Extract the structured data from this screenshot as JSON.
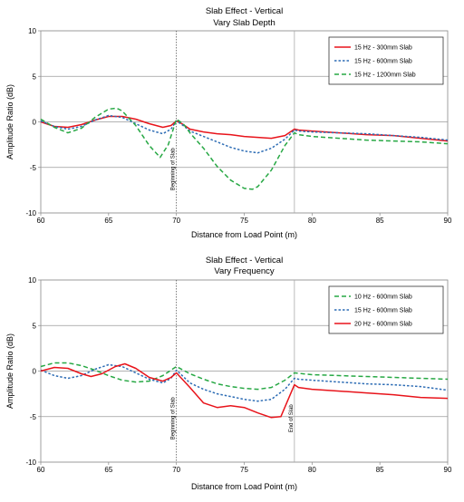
{
  "chart_data": [
    {
      "type": "line",
      "title": "Slab Effect - Vertical",
      "subtitle": "Vary Slab Depth",
      "xlabel": "Distance from Load Point (m)",
      "ylabel": "Amplitude Ratio (dB)",
      "xlim": [
        60,
        90
      ],
      "ylim": [
        -10,
        10
      ],
      "xticks": [
        60,
        65,
        70,
        75,
        80,
        85,
        90
      ],
      "yticks": [
        -10,
        -5,
        0,
        5,
        10
      ],
      "grid": "horizontal",
      "legend_position": "top-right",
      "vlines": [
        70,
        78.7
      ],
      "annotations": [
        {
          "text": "Beginning of Slab",
          "x": 70
        }
      ],
      "series": [
        {
          "name": "15 Hz - 300mm Slab",
          "color": "#e8141b",
          "dash": "solid",
          "points": [
            [
              60,
              0.0
            ],
            [
              61,
              -0.5
            ],
            [
              62,
              -0.6
            ],
            [
              63,
              -0.3
            ],
            [
              64,
              0.2
            ],
            [
              65,
              0.6
            ],
            [
              66,
              0.6
            ],
            [
              67,
              0.3
            ],
            [
              68,
              -0.2
            ],
            [
              69,
              -0.6
            ],
            [
              69.6,
              -0.4
            ],
            [
              70,
              0.1
            ],
            [
              70.4,
              -0.2
            ],
            [
              71,
              -0.8
            ],
            [
              72,
              -1.1
            ],
            [
              73,
              -1.3
            ],
            [
              74,
              -1.4
            ],
            [
              75,
              -1.6
            ],
            [
              76,
              -1.7
            ],
            [
              77,
              -1.8
            ],
            [
              78,
              -1.5
            ],
            [
              78.7,
              -0.8
            ],
            [
              79,
              -0.9
            ],
            [
              80,
              -1.0
            ],
            [
              82,
              -1.2
            ],
            [
              84,
              -1.4
            ],
            [
              86,
              -1.5
            ],
            [
              88,
              -1.8
            ],
            [
              90,
              -2.1
            ]
          ]
        },
        {
          "name": "15 Hz - 600mm Slab",
          "color": "#2e6db5",
          "dash": "short",
          "points": [
            [
              60,
              0.1
            ],
            [
              61,
              -0.5
            ],
            [
              62,
              -0.8
            ],
            [
              63,
              -0.5
            ],
            [
              64,
              0.2
            ],
            [
              65,
              0.7
            ],
            [
              66,
              0.5
            ],
            [
              67,
              -0.2
            ],
            [
              68,
              -0.9
            ],
            [
              69,
              -1.3
            ],
            [
              69.6,
              -0.8
            ],
            [
              70,
              0.1
            ],
            [
              70.5,
              -0.4
            ],
            [
              71,
              -1.0
            ],
            [
              72,
              -1.6
            ],
            [
              73,
              -2.2
            ],
            [
              74,
              -2.8
            ],
            [
              75,
              -3.2
            ],
            [
              76,
              -3.4
            ],
            [
              77,
              -2.9
            ],
            [
              78,
              -1.9
            ],
            [
              78.7,
              -0.9
            ],
            [
              79,
              -1.0
            ],
            [
              80,
              -1.1
            ],
            [
              82,
              -1.2
            ],
            [
              84,
              -1.3
            ],
            [
              86,
              -1.5
            ],
            [
              88,
              -1.7
            ],
            [
              90,
              -2.0
            ]
          ]
        },
        {
          "name": "15 Hz - 1200mm Slab",
          "color": "#27a844",
          "dash": "long",
          "points": [
            [
              60,
              0.3
            ],
            [
              61,
              -0.6
            ],
            [
              62,
              -1.2
            ],
            [
              63,
              -0.7
            ],
            [
              64,
              0.5
            ],
            [
              65,
              1.4
            ],
            [
              65.6,
              1.5
            ],
            [
              66,
              1.2
            ],
            [
              67,
              -0.4
            ],
            [
              68,
              -2.6
            ],
            [
              68.8,
              -3.9
            ],
            [
              69.4,
              -2.5
            ],
            [
              70,
              0.3
            ],
            [
              70.5,
              -0.2
            ],
            [
              71,
              -1.2
            ],
            [
              72,
              -2.9
            ],
            [
              73,
              -4.9
            ],
            [
              74,
              -6.4
            ],
            [
              75,
              -7.3
            ],
            [
              75.6,
              -7.4
            ],
            [
              76,
              -7.1
            ],
            [
              77,
              -5.3
            ],
            [
              78,
              -2.6
            ],
            [
              78.7,
              -1.2
            ],
            [
              79,
              -1.4
            ],
            [
              80,
              -1.6
            ],
            [
              82,
              -1.8
            ],
            [
              84,
              -2.0
            ],
            [
              86,
              -2.1
            ],
            [
              88,
              -2.2
            ],
            [
              90,
              -2.4
            ]
          ]
        }
      ]
    },
    {
      "type": "line",
      "title": "Slab Effect - Vertical",
      "subtitle": "Vary Frequency",
      "xlabel": "Distance from Load Point (m)",
      "ylabel": "Amplitude Ratio (dB)",
      "xlim": [
        60,
        90
      ],
      "ylim": [
        -10,
        10
      ],
      "xticks": [
        60,
        65,
        70,
        75,
        80,
        85,
        90
      ],
      "yticks": [
        -10,
        -5,
        0,
        5,
        10
      ],
      "grid": "horizontal",
      "legend_position": "top-right",
      "vlines": [
        70,
        78.7
      ],
      "annotations": [
        {
          "text": "Beginning of Slab",
          "x": 70
        },
        {
          "text": "End of Slab",
          "x": 78.7
        }
      ],
      "series": [
        {
          "name": "10 Hz - 600mm Slab",
          "color": "#27a844",
          "dash": "long",
          "points": [
            [
              60,
              0.5
            ],
            [
              61,
              0.9
            ],
            [
              62,
              0.9
            ],
            [
              63,
              0.6
            ],
            [
              64,
              0.1
            ],
            [
              65,
              -0.5
            ],
            [
              66,
              -1.0
            ],
            [
              67,
              -1.2
            ],
            [
              68,
              -1.1
            ],
            [
              69,
              -0.5
            ],
            [
              70,
              0.5
            ],
            [
              71,
              -0.3
            ],
            [
              72,
              -0.9
            ],
            [
              73,
              -1.4
            ],
            [
              74,
              -1.7
            ],
            [
              75,
              -1.9
            ],
            [
              76,
              -2.0
            ],
            [
              77,
              -1.8
            ],
            [
              78,
              -1.0
            ],
            [
              78.7,
              -0.2
            ],
            [
              80,
              -0.4
            ],
            [
              82,
              -0.5
            ],
            [
              84,
              -0.6
            ],
            [
              86,
              -0.7
            ],
            [
              88,
              -0.8
            ],
            [
              90,
              -0.9
            ]
          ]
        },
        {
          "name": "15 Hz - 600mm Slab",
          "color": "#2e6db5",
          "dash": "short",
          "points": [
            [
              60,
              0.1
            ],
            [
              61,
              -0.5
            ],
            [
              62,
              -0.8
            ],
            [
              63,
              -0.5
            ],
            [
              64,
              0.2
            ],
            [
              65,
              0.7
            ],
            [
              66,
              0.5
            ],
            [
              67,
              -0.2
            ],
            [
              68,
              -0.9
            ],
            [
              69,
              -1.3
            ],
            [
              69.6,
              -0.8
            ],
            [
              70,
              0.1
            ],
            [
              70.5,
              -0.6
            ],
            [
              71,
              -1.3
            ],
            [
              72,
              -2.0
            ],
            [
              73,
              -2.5
            ],
            [
              74,
              -2.8
            ],
            [
              75,
              -3.1
            ],
            [
              76,
              -3.3
            ],
            [
              77,
              -3.1
            ],
            [
              78,
              -2.0
            ],
            [
              78.7,
              -0.8
            ],
            [
              79,
              -0.9
            ],
            [
              80,
              -1.0
            ],
            [
              82,
              -1.2
            ],
            [
              84,
              -1.4
            ],
            [
              86,
              -1.5
            ],
            [
              88,
              -1.7
            ],
            [
              90,
              -2.1
            ]
          ]
        },
        {
          "name": "20 Hz - 600mm Slab",
          "color": "#e8141b",
          "dash": "solid",
          "points": [
            [
              60,
              0.0
            ],
            [
              61,
              0.4
            ],
            [
              62,
              0.3
            ],
            [
              63,
              -0.3
            ],
            [
              63.7,
              -0.6
            ],
            [
              64.5,
              -0.3
            ],
            [
              65.5,
              0.5
            ],
            [
              66.2,
              0.8
            ],
            [
              67,
              0.3
            ],
            [
              68,
              -0.7
            ],
            [
              69,
              -1.1
            ],
            [
              69.6,
              -0.7
            ],
            [
              70,
              -0.2
            ],
            [
              71,
              -1.8
            ],
            [
              72,
              -3.5
            ],
            [
              73,
              -4.0
            ],
            [
              74,
              -3.8
            ],
            [
              75,
              -4.0
            ],
            [
              76,
              -4.6
            ],
            [
              77,
              -5.1
            ],
            [
              77.7,
              -5.0
            ],
            [
              78.7,
              -1.5
            ],
            [
              79,
              -1.8
            ],
            [
              80,
              -2.0
            ],
            [
              82,
              -2.2
            ],
            [
              84,
              -2.4
            ],
            [
              86,
              -2.6
            ],
            [
              88,
              -2.9
            ],
            [
              90,
              -3.0
            ]
          ]
        }
      ]
    }
  ]
}
